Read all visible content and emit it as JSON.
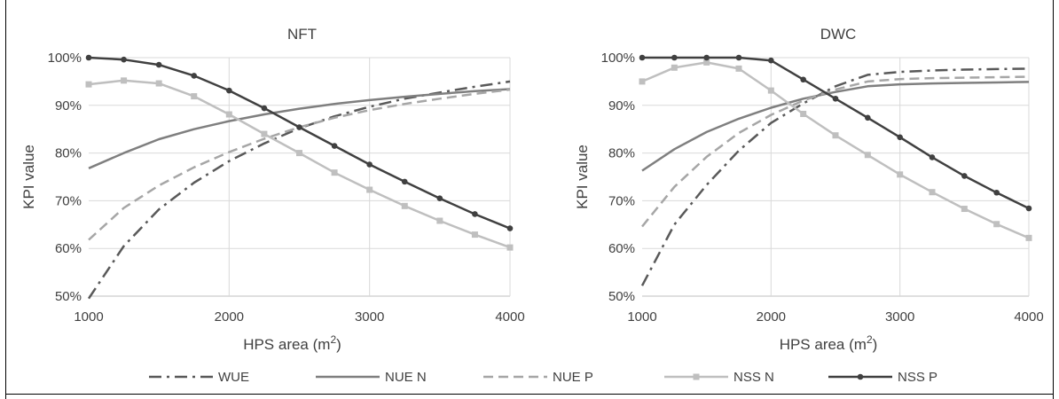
{
  "chart_data": [
    {
      "type": "line",
      "title": "NFT",
      "xlabel": "HPS area (m",
      "xlabel_sup": "2",
      "xlabel_end": ")",
      "ylabel": "KPI value",
      "xlim": [
        1000,
        4000
      ],
      "ylim": [
        50,
        100
      ],
      "xticks": [
        1000,
        2000,
        3000,
        4000
      ],
      "yticks": [
        50,
        60,
        70,
        80,
        90,
        100
      ],
      "ytick_labels": [
        "50%",
        "60%",
        "70%",
        "80%",
        "90%",
        "100%"
      ],
      "grid": true,
      "series": [
        {
          "name": "WUE",
          "style": "dashdot",
          "color": "#595959",
          "marker": "none",
          "x": [
            1000,
            1250,
            1500,
            1750,
            2000,
            2250,
            2500,
            2750,
            3000,
            3250,
            3500,
            3750,
            4000
          ],
          "y": [
            49.5,
            60.5,
            68.2,
            73.8,
            78.3,
            82.0,
            85.2,
            87.7,
            89.7,
            91.4,
            92.7,
            93.9,
            95.0
          ]
        },
        {
          "name": "NUE N",
          "style": "solid",
          "color": "#7f7f7f",
          "marker": "none",
          "x": [
            1000,
            1250,
            1500,
            1750,
            2000,
            2250,
            2500,
            2750,
            3000,
            3250,
            3500,
            3750,
            4000
          ],
          "y": [
            76.8,
            80.0,
            82.9,
            85.0,
            86.7,
            88.1,
            89.3,
            90.3,
            91.1,
            91.8,
            92.4,
            93.0,
            93.4
          ]
        },
        {
          "name": "NUE P",
          "style": "dashed",
          "color": "#a6a6a6",
          "marker": "none",
          "x": [
            1000,
            1250,
            1500,
            1750,
            2000,
            2250,
            2500,
            2750,
            3000,
            3250,
            3500,
            3750,
            4000
          ],
          "y": [
            61.8,
            68.5,
            73.2,
            77.0,
            80.2,
            83.0,
            85.4,
            87.4,
            89.0,
            90.3,
            91.4,
            92.4,
            93.3
          ]
        },
        {
          "name": "NSS N",
          "style": "solid",
          "color": "#bfbfbf",
          "marker": "square",
          "x": [
            1000,
            1250,
            1500,
            1750,
            2000,
            2250,
            2500,
            2750,
            3000,
            3250,
            3500,
            3750,
            4000
          ],
          "y": [
            94.4,
            95.2,
            94.6,
            91.9,
            88.1,
            84.0,
            80.0,
            75.9,
            72.3,
            68.9,
            65.8,
            62.9,
            60.2
          ]
        },
        {
          "name": "NSS P",
          "style": "solid",
          "color": "#404040",
          "marker": "circle",
          "x": [
            1000,
            1250,
            1500,
            1750,
            2000,
            2250,
            2500,
            2750,
            3000,
            3250,
            3500,
            3750,
            4000
          ],
          "y": [
            100,
            99.6,
            98.5,
            96.2,
            93.1,
            89.4,
            85.4,
            81.5,
            77.6,
            74.0,
            70.5,
            67.2,
            64.2
          ]
        }
      ]
    },
    {
      "type": "line",
      "title": "DWC",
      "xlabel": "HPS area (m",
      "xlabel_sup": "2",
      "xlabel_end": ")",
      "ylabel": "KPI value",
      "xlim": [
        1000,
        4000
      ],
      "ylim": [
        50,
        100
      ],
      "xticks": [
        1000,
        2000,
        3000,
        4000
      ],
      "yticks": [
        50,
        60,
        70,
        80,
        90,
        100
      ],
      "ytick_labels": [
        "50%",
        "60%",
        "70%",
        "80%",
        "90%",
        "100%"
      ],
      "grid": true,
      "series": [
        {
          "name": "WUE",
          "style": "dashdot",
          "color": "#595959",
          "marker": "none",
          "x": [
            1000,
            1250,
            1500,
            1750,
            2000,
            2250,
            2500,
            2750,
            3000,
            3250,
            3500,
            3750,
            4000
          ],
          "y": [
            52.2,
            65.0,
            73.3,
            80.5,
            86.3,
            90.4,
            94.0,
            96.4,
            97.0,
            97.3,
            97.5,
            97.6,
            97.7
          ]
        },
        {
          "name": "NUE N",
          "style": "solid",
          "color": "#7f7f7f",
          "marker": "none",
          "x": [
            1000,
            1250,
            1500,
            1750,
            2000,
            2250,
            2500,
            2750,
            3000,
            3250,
            3500,
            3750,
            4000
          ],
          "y": [
            76.3,
            80.8,
            84.4,
            87.2,
            89.5,
            91.4,
            92.8,
            94.0,
            94.4,
            94.6,
            94.7,
            94.8,
            94.9
          ]
        },
        {
          "name": "NUE P",
          "style": "dashed",
          "color": "#a6a6a6",
          "marker": "none",
          "x": [
            1000,
            1250,
            1500,
            1750,
            2000,
            2250,
            2500,
            2750,
            3000,
            3250,
            3500,
            3750,
            4000
          ],
          "y": [
            64.6,
            72.9,
            79.2,
            84.2,
            88.0,
            91.0,
            93.3,
            95.0,
            95.5,
            95.7,
            95.8,
            95.9,
            96.0
          ]
        },
        {
          "name": "NSS N",
          "style": "solid",
          "color": "#bfbfbf",
          "marker": "square",
          "x": [
            1000,
            1250,
            1500,
            1750,
            2000,
            2250,
            2500,
            2750,
            3000,
            3250,
            3500,
            3750,
            4000
          ],
          "y": [
            95.0,
            97.9,
            99.0,
            97.7,
            93.1,
            88.2,
            83.7,
            79.6,
            75.5,
            71.8,
            68.3,
            65.1,
            62.2
          ]
        },
        {
          "name": "NSS P",
          "style": "solid",
          "color": "#404040",
          "marker": "circle",
          "x": [
            1000,
            1250,
            1500,
            1750,
            2000,
            2250,
            2500,
            2750,
            3000,
            3250,
            3500,
            3750,
            4000
          ],
          "y": [
            100,
            100,
            100,
            100,
            99.4,
            95.4,
            91.4,
            87.4,
            83.3,
            79.1,
            75.2,
            71.7,
            68.4
          ]
        }
      ]
    }
  ],
  "legend": {
    "placement": "bottom",
    "entries": [
      {
        "name": "WUE",
        "style": "dashdot",
        "color": "#595959",
        "marker": "none"
      },
      {
        "name": "NUE N",
        "style": "solid",
        "color": "#7f7f7f",
        "marker": "none"
      },
      {
        "name": "NUE P",
        "style": "dashed",
        "color": "#a6a6a6",
        "marker": "none"
      },
      {
        "name": "NSS N",
        "style": "solid",
        "color": "#bfbfbf",
        "marker": "square"
      },
      {
        "name": "NSS P",
        "style": "solid",
        "color": "#404040",
        "marker": "circle"
      }
    ]
  }
}
